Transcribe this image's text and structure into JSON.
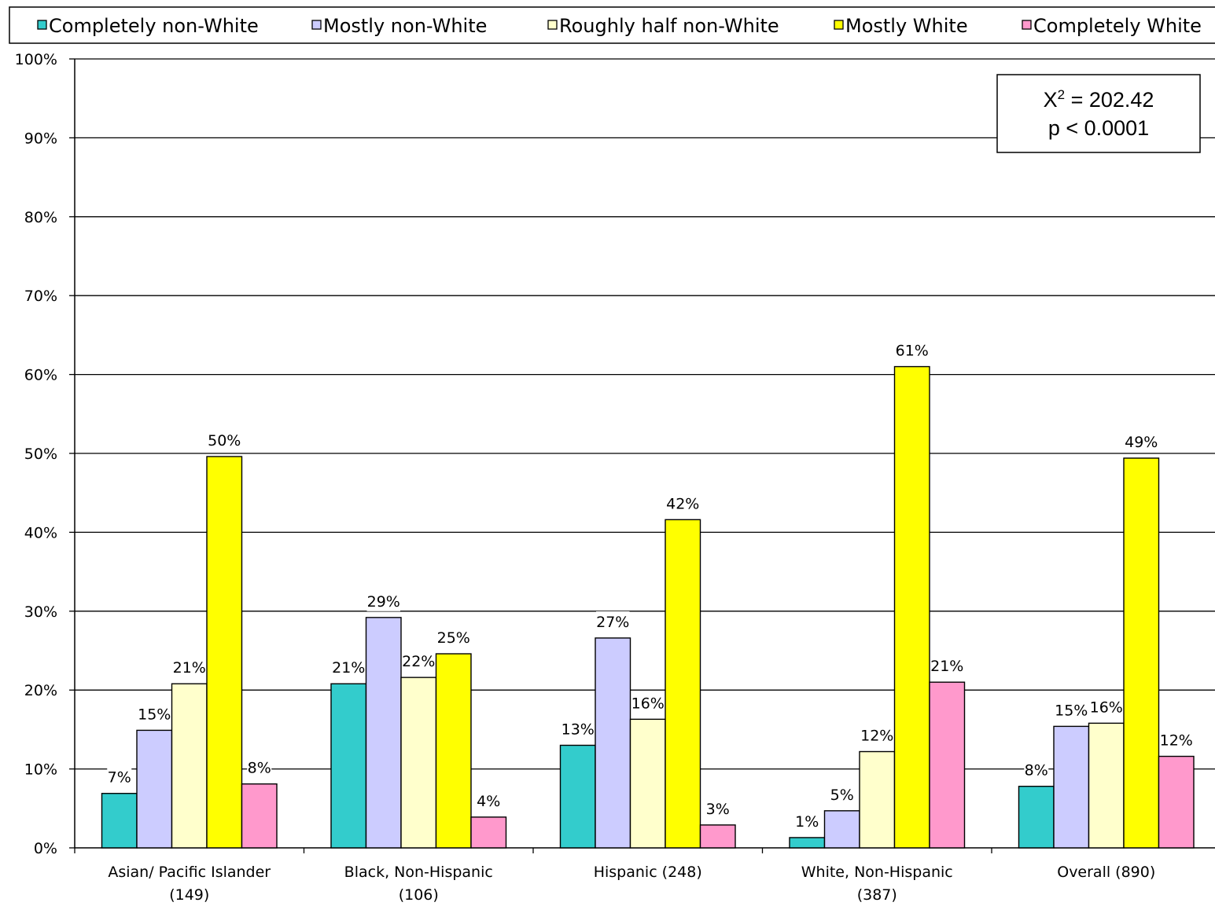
{
  "chart_data": {
    "type": "bar",
    "title": "",
    "xlabel": "",
    "ylabel": "",
    "ylim": [
      0,
      100
    ],
    "y_unit": "%",
    "yticks": [
      "0%",
      "10%",
      "20%",
      "30%",
      "40%",
      "50%",
      "60%",
      "70%",
      "80%",
      "90%",
      "100%"
    ],
    "grid": true,
    "legend_position": "top",
    "categories": [
      [
        "Asian/ Pacific Islander",
        "(149)"
      ],
      [
        "Black, Non-Hispanic",
        "(106)"
      ],
      [
        "Hispanic (248)"
      ],
      [
        "White, Non-Hispanic",
        "(387)"
      ],
      [
        "Overall (890)"
      ]
    ],
    "series": [
      {
        "name": "Completely non-White",
        "color": "#33CCCC",
        "values": [
          6.9,
          20.8,
          13.0,
          1.3,
          7.8
        ],
        "labels": [
          "7%",
          "21%",
          "13%",
          "1%",
          "8%"
        ]
      },
      {
        "name": "Mostly non-White",
        "color": "#CCCCFF",
        "values": [
          14.9,
          29.2,
          26.6,
          4.7,
          15.4
        ],
        "labels": [
          "15%",
          "29%",
          "27%",
          "5%",
          "15%"
        ]
      },
      {
        "name": "Roughly half non-White",
        "color": "#FFFFCC",
        "values": [
          20.8,
          21.6,
          16.3,
          12.2,
          15.8
        ],
        "labels": [
          "21%",
          "22%",
          "16%",
          "12%",
          "16%"
        ]
      },
      {
        "name": "Mostly White",
        "color": "#FFFF00",
        "values": [
          49.6,
          24.6,
          41.6,
          61.0,
          49.4
        ],
        "labels": [
          "50%",
          "25%",
          "42%",
          "61%",
          "49%"
        ]
      },
      {
        "name": "Completely White",
        "color": "#FF99CC",
        "values": [
          8.1,
          3.9,
          2.9,
          21.0,
          11.6
        ],
        "labels": [
          "8%",
          "4%",
          "3%",
          "21%",
          "12%"
        ]
      }
    ],
    "annotation": {
      "line1_base": "X",
      "line1_sup": "2",
      "line1_rest": " = 202.42",
      "line2": "p < 0.0001"
    }
  }
}
